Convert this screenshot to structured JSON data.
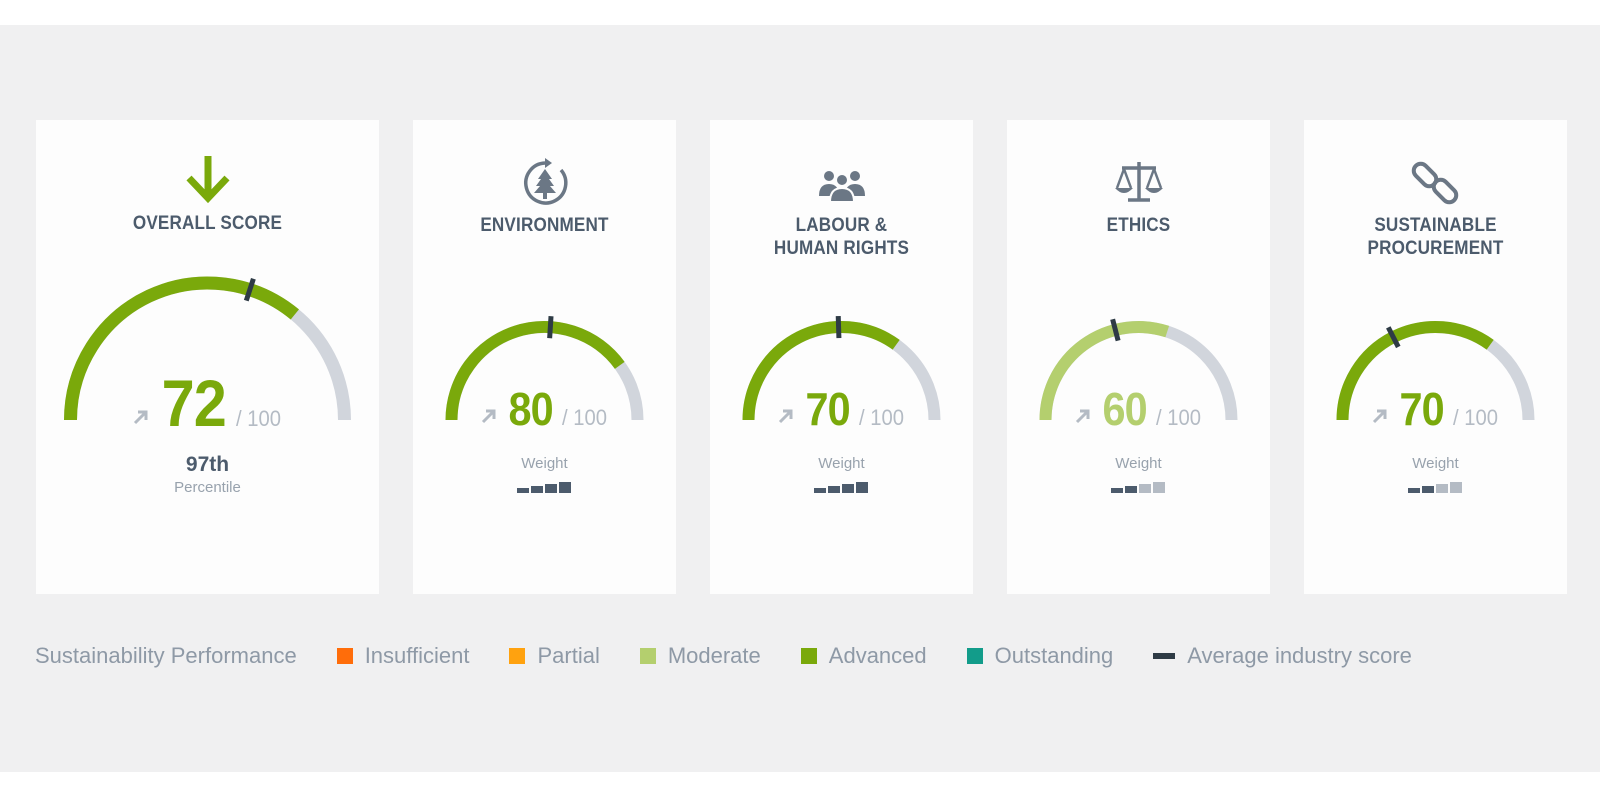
{
  "cards": [
    {
      "title_lines": [
        "OVERALL SCORE"
      ],
      "icon": "arrow-down-icon",
      "score": 72,
      "score_text": "72",
      "out_of": "/ 100",
      "category": "Advanced",
      "industry_average_score": 60,
      "percentile": "97th",
      "percentile_label": "Percentile"
    },
    {
      "title_lines": [
        "ENVIRONMENT"
      ],
      "icon": "tree-cycle-icon",
      "score": 80,
      "score_text": "80",
      "out_of": "/ 100",
      "category": "Advanced",
      "industry_average_score": 52,
      "weight_label": "Weight",
      "weight_level": 4
    },
    {
      "title_lines": [
        "LABOUR &",
        "HUMAN RIGHTS"
      ],
      "icon": "people-icon",
      "score": 70,
      "score_text": "70",
      "out_of": "/ 100",
      "category": "Advanced",
      "industry_average_score": 49,
      "weight_label": "Weight",
      "weight_level": 4
    },
    {
      "title_lines": [
        "ETHICS"
      ],
      "icon": "scales-icon",
      "score": 60,
      "score_text": "60",
      "out_of": "/ 100",
      "category": "Moderate",
      "industry_average_score": 42,
      "weight_label": "Weight",
      "weight_level": 2
    },
    {
      "title_lines": [
        "SUSTAINABLE",
        "PROCUREMENT"
      ],
      "icon": "chain-link-icon",
      "score": 70,
      "score_text": "70",
      "out_of": "/ 100",
      "category": "Advanced",
      "industry_average_score": 35,
      "weight_label": "Weight",
      "weight_level": 2
    }
  ],
  "legend": {
    "title": "Sustainability Performance",
    "items": [
      {
        "label": "Insufficient",
        "color": "#ff6d0a",
        "type": "square"
      },
      {
        "label": "Partial",
        "color": "#ffa20f",
        "type": "square"
      },
      {
        "label": "Moderate",
        "color": "#b4cf6e",
        "type": "square"
      },
      {
        "label": "Advanced",
        "color": "#7aa90b",
        "type": "square"
      },
      {
        "label": "Outstanding",
        "color": "#129c8a",
        "type": "square"
      },
      {
        "label": "Average industry score",
        "color": "#2e3b45",
        "type": "line"
      }
    ]
  },
  "colors": {
    "advanced": "#7aa90b",
    "moderate": "#b4cf6e",
    "track": "#d1d5dc",
    "marker": "#2e3b45",
    "weight_active": "#4c5b6c",
    "weight_inactive": "#b4bbc4",
    "trend_arrow": "#b4bbc4",
    "title": "#4c5b6c"
  }
}
